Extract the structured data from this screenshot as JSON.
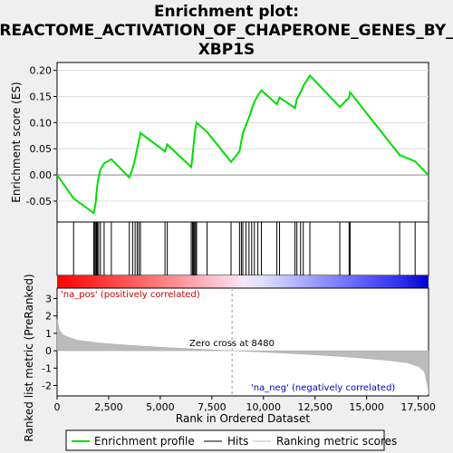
{
  "chart_data": {
    "type": "line",
    "title_lines": [
      "Enrichment plot:",
      "REACTOME_ACTIVATION_OF_CHAPERONE_GENES_BY_",
      "XBP1S"
    ],
    "es_panel": {
      "ylabel": "Enrichment score (ES)",
      "ylim": [
        -0.09,
        0.215
      ],
      "yticks": [
        -0.05,
        0.0,
        0.05,
        0.1,
        0.15,
        0.2
      ],
      "ytick_labels": [
        "-0.05",
        "0.00",
        "0.05",
        "0.10",
        "0.15",
        "0.20"
      ],
      "curve": {
        "x": [
          0,
          800,
          1780,
          1830,
          1880,
          1910,
          1950,
          2010,
          2100,
          2280,
          2630,
          3500,
          3660,
          3780,
          3880,
          3960,
          4040,
          5230,
          5340,
          6500,
          6560,
          6610,
          6660,
          6710,
          6760,
          7270,
          8430,
          8840,
          8930,
          9000,
          9150,
          9300,
          9430,
          9560,
          9730,
          9900,
          10650,
          10780,
          11530,
          11620,
          11800,
          11930,
          12250,
          13700,
          14150,
          14200,
          16600,
          17350,
          17980
        ],
        "y": [
          0.0,
          -0.045,
          -0.073,
          -0.063,
          -0.05,
          -0.035,
          -0.02,
          -0.005,
          0.01,
          0.022,
          0.03,
          -0.005,
          0.012,
          0.03,
          0.05,
          0.065,
          0.08,
          0.045,
          0.058,
          0.015,
          0.035,
          0.055,
          0.075,
          0.09,
          0.1,
          0.082,
          0.025,
          0.045,
          0.065,
          0.08,
          0.095,
          0.11,
          0.125,
          0.14,
          0.152,
          0.162,
          0.135,
          0.148,
          0.128,
          0.145,
          0.158,
          0.17,
          0.19,
          0.13,
          0.148,
          0.158,
          0.038,
          0.026,
          0.0
        ]
      },
      "hits": [
        800,
        1780,
        1830,
        1880,
        1910,
        1950,
        2010,
        2100,
        2280,
        2630,
        3500,
        3660,
        3780,
        3880,
        3960,
        4040,
        5230,
        5340,
        6500,
        6560,
        6610,
        6660,
        6710,
        6760,
        7270,
        8430,
        8840,
        8930,
        9000,
        9150,
        9300,
        9430,
        9560,
        9730,
        9900,
        10650,
        10780,
        11530,
        11620,
        11800,
        11930,
        12250,
        13700,
        14150,
        14200,
        16600,
        17350
      ]
    },
    "rank_panel": {
      "ylabel": "Ranked list metric (PreRanked)",
      "ylim": [
        -2.6,
        3.6
      ],
      "yticks": [
        -2,
        -1,
        0,
        1,
        2,
        3
      ],
      "ytick_labels": [
        "-2",
        "-1",
        "0",
        "1",
        "2",
        "3"
      ],
      "metric_profile": {
        "x": [
          0,
          100,
          300,
          600,
          1000,
          2000,
          3000,
          5000,
          7000,
          8480,
          10000,
          12000,
          14000,
          16000,
          17000,
          17500,
          17800,
          17950,
          18000
        ],
        "y": [
          1.8,
          1.2,
          0.9,
          0.75,
          0.6,
          0.45,
          0.35,
          0.2,
          0.08,
          0.0,
          -0.08,
          -0.2,
          -0.35,
          -0.55,
          -0.7,
          -0.9,
          -1.2,
          -2.0,
          -2.5
        ]
      },
      "zero_cross": 8480,
      "zero_cross_label": "Zero cross at 8480",
      "pos_label": "'na_pos' (positively correlated)",
      "neg_label": "'na_neg' (negatively correlated)"
    },
    "xlabel": "Rank in Ordered Dataset",
    "xlim": [
      0,
      18000
    ],
    "xticks": [
      0,
      2500,
      5000,
      7500,
      10000,
      12500,
      15000,
      17500
    ],
    "xtick_labels": [
      "0",
      "2,500",
      "5,000",
      "7,500",
      "10,000",
      "12,500",
      "15,000",
      "17,500"
    ],
    "legend": {
      "placement": "bottom",
      "items": [
        {
          "label": "Enrichment profile",
          "color": "#00dd00"
        },
        {
          "label": "Hits",
          "color": "#000000"
        },
        {
          "label": "Ranking metric scores",
          "color": "#bbbbbb"
        }
      ]
    }
  }
}
